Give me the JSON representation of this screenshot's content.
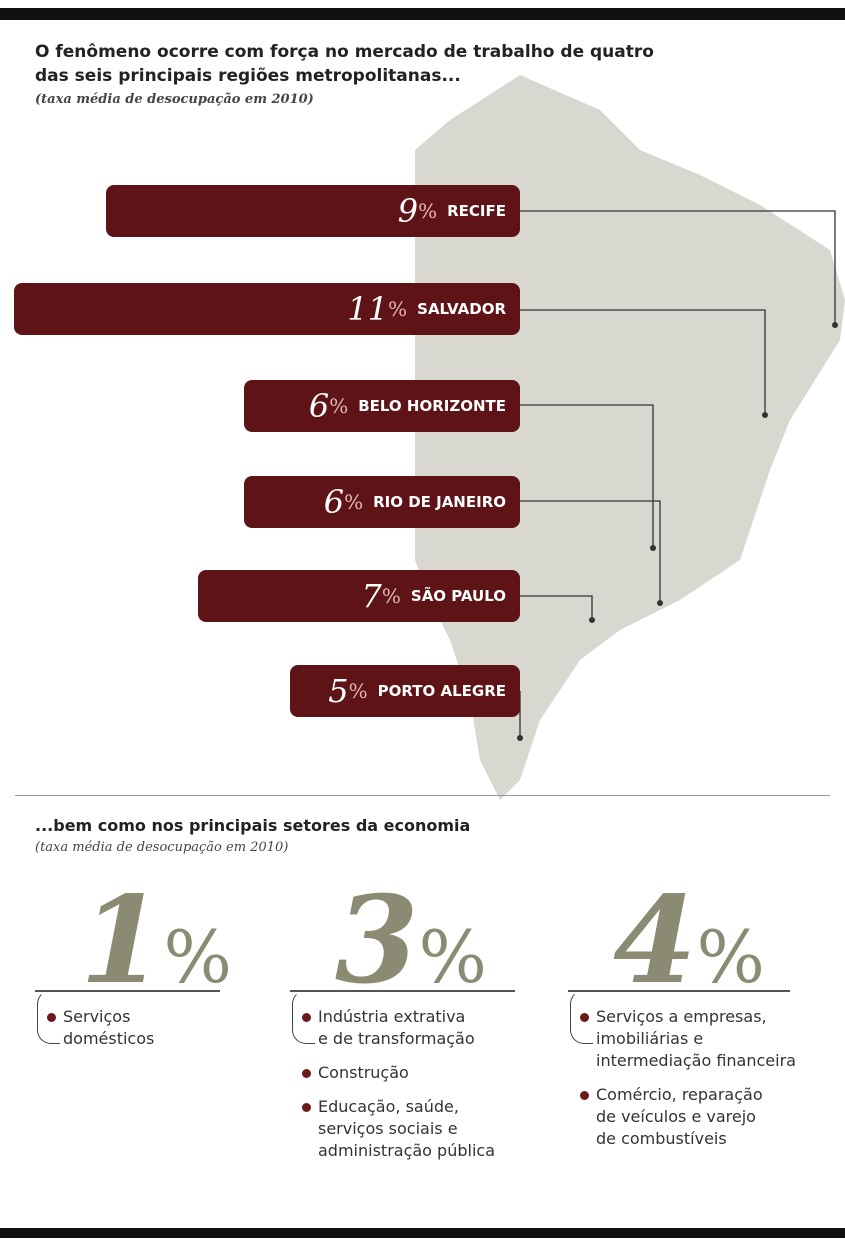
{
  "title_lines": [
    "O fenômeno ocorre com força no mercado de trabalho de quatro",
    "das seis principais regiões metropolitanas..."
  ],
  "subtitle": "(taxa média de desocupação em 2010)",
  "regions": [
    {
      "value": 9,
      "unit": "%",
      "name": "RECIFE"
    },
    {
      "value": 11,
      "unit": "%",
      "name": "SALVADOR"
    },
    {
      "value": 6,
      "unit": "%",
      "name": "BELO HORIZONTE"
    },
    {
      "value": 6,
      "unit": "%",
      "name": "RIO DE JANEIRO"
    },
    {
      "value": 7,
      "unit": "%",
      "name": "SÃO PAULO"
    },
    {
      "value": 5,
      "unit": "%",
      "name": "PORTO ALEGRE"
    }
  ],
  "sectors_title": "...bem como nos principais setores da economia",
  "sectors_subtitle": "(taxa média de desocupação em 2010)",
  "sectors": [
    {
      "value": 1,
      "unit": "%",
      "items": [
        [
          "Serviços",
          "domésticos"
        ]
      ]
    },
    {
      "value": 3,
      "unit": "%",
      "items": [
        [
          "Indústria extrativa",
          "e de transformação"
        ],
        [
          "Construção"
        ],
        [
          "Educação, saúde,",
          "serviços sociais e",
          "administração pública"
        ]
      ]
    },
    {
      "value": 4,
      "unit": "%",
      "items": [
        [
          "Serviços a empresas,",
          "imobiliárias e",
          "intermediação financeira"
        ],
        [
          "Comércio, reparação",
          "de veículos e varejo",
          "de combustíveis"
        ]
      ]
    }
  ]
}
